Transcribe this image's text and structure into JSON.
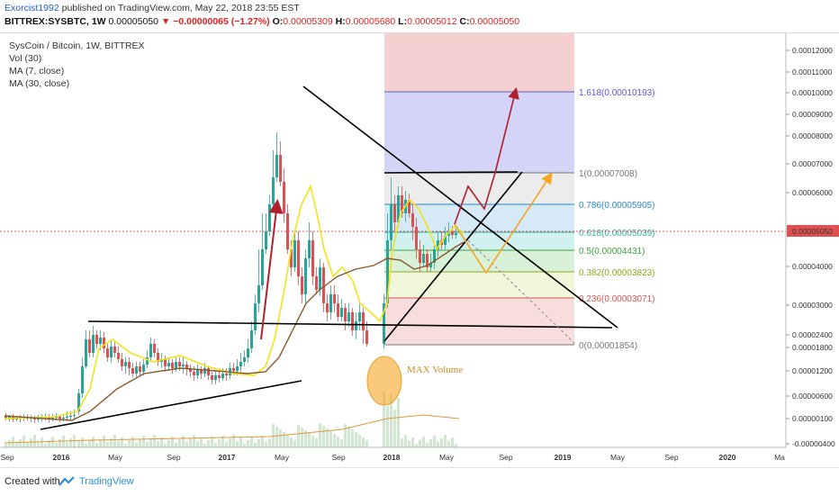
{
  "header": {
    "author": "Exorcist1992",
    "published": " published on TradingView.com, May 22, 2018 23:55 EST",
    "symbol": "BITTREX:SYSBTC, 1W",
    "price": "0.00005050",
    "change": "▼ −0.00000065 (−1.27%)",
    "o_label": "O:",
    "o": "0.00005309",
    "h_label": "H:",
    "h": "0.00005680",
    "l_label": "L:",
    "l": "0.00005012",
    "c_label": "C:",
    "c": "0.00005050"
  },
  "legend": {
    "title": "SysCoin / Bitcoin, 1W, BITTREX",
    "vol": "Vol (30)",
    "ma7": "MA (7, close)",
    "ma30": "MA (30, close)"
  },
  "footer": {
    "created": "Created with",
    "brand": "TradingView"
  },
  "chart_data": {
    "type": "candlestick",
    "pair": "SYSBTC",
    "timeframe": "1W",
    "y_scale": "log",
    "y_ticks": [
      "0.00012000",
      "0.00011000",
      "0.00010000",
      "0.00009000",
      "0.00008000",
      "0.00007000",
      "0.00006000",
      "0.00005050",
      "0.00004000",
      "0.00003000",
      "0.00002400",
      "0.00001800",
      "0.00001200",
      "0.00000600",
      "0.00000100",
      "-0.00000400"
    ],
    "x_ticks": [
      "Sep",
      "2016",
      "May",
      "Sep",
      "2017",
      "May",
      "Sep",
      "2018",
      "May",
      "Sep",
      "2019",
      "May",
      "Sep",
      "2020",
      "Ma"
    ],
    "last_price": "0.00005050",
    "fibonacci": [
      {
        "label": "1.618(0.00010193)",
        "level": 0.00010193,
        "color": "#5a5ad6"
      },
      {
        "label": "1(0.00007008)",
        "level": 7.008e-05,
        "color": "#777777"
      },
      {
        "label": "0.786(0.00005905)",
        "level": 5.905e-05,
        "color": "#2a86c9"
      },
      {
        "label": "0.618(0.00005039)",
        "level": 5.039e-05,
        "color": "#2bb3a6"
      },
      {
        "label": "0.5(0.00004431)",
        "level": 4.431e-05,
        "color": "#3aa53a"
      },
      {
        "label": "0.382(0.00003823)",
        "level": 3.823e-05,
        "color": "#8fa61a"
      },
      {
        "label": "0.236(0.00003071)",
        "level": 3.071e-05,
        "color": "#d9534f"
      },
      {
        "label": "0(0.00001854)",
        "level": 1.854e-05,
        "color": "#777777"
      }
    ],
    "annotations": [
      "MAX Volume"
    ],
    "colors": {
      "up": "#26a69a",
      "down": "#e05050",
      "ma7": "#f2e21a",
      "ma30": "#8b5a2b",
      "arrow_red": "#b0202a",
      "arrow_orange": "#f5a623"
    }
  }
}
